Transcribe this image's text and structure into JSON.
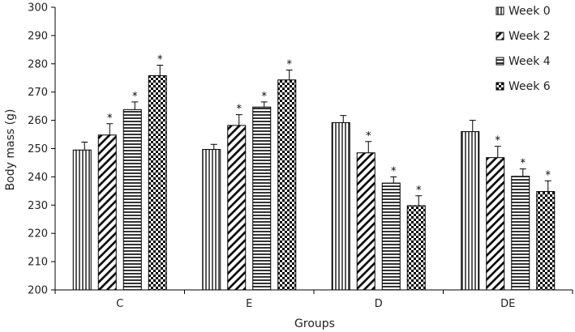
{
  "chart_data": {
    "type": "bar",
    "title": "",
    "xlabel": "Groups",
    "ylabel": "Body mass (g)",
    "ylim": [
      200,
      300
    ],
    "yticks": [
      200,
      210,
      220,
      230,
      240,
      250,
      260,
      270,
      280,
      290,
      300
    ],
    "categories": [
      "C",
      "E",
      "D",
      "DE"
    ],
    "legend_position": "top-right",
    "grid": false,
    "series": [
      {
        "name": "Week 0",
        "pattern": "vertical-lines",
        "values": [
          249.5,
          249.7,
          259.2,
          256.0
        ],
        "errors": [
          2.8,
          1.8,
          2.5,
          4.0
        ],
        "significant": [
          false,
          false,
          false,
          false
        ]
      },
      {
        "name": "Week 2",
        "pattern": "diagonal-lines",
        "values": [
          254.8,
          258.2,
          248.5,
          246.8
        ],
        "errors": [
          4.0,
          3.8,
          4.0,
          4.0
        ],
        "significant": [
          true,
          true,
          true,
          true
        ]
      },
      {
        "name": "Week 4",
        "pattern": "horizontal-lines",
        "values": [
          263.8,
          264.7,
          237.8,
          240.2
        ],
        "errors": [
          2.7,
          1.8,
          2.2,
          2.6
        ],
        "significant": [
          true,
          true,
          true,
          true
        ]
      },
      {
        "name": "Week 6",
        "pattern": "checkerboard",
        "values": [
          275.8,
          274.3,
          229.8,
          234.8
        ],
        "errors": [
          3.7,
          3.5,
          3.5,
          3.8
        ],
        "significant": [
          true,
          true,
          true,
          true
        ]
      }
    ],
    "significance_marker": "*"
  }
}
